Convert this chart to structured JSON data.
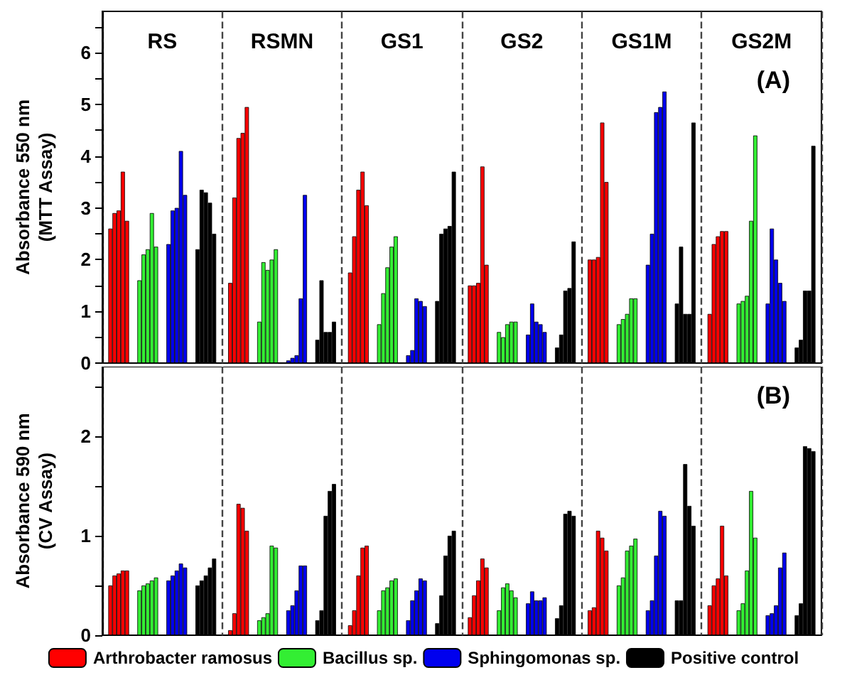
{
  "chart_data": [
    {
      "type": "bar",
      "ylabel": "Absorbance 550 nm\n(MTT Assay)",
      "categories": [
        "RS",
        "RSMN",
        "GS1",
        "GS2",
        "GS1M",
        "GS2M"
      ],
      "ylim": [
        0,
        6.8
      ],
      "yticks": [
        0,
        {
          "value": 0.5,
          "label": null
        },
        1,
        {
          "value": 1.5,
          "label": null
        },
        2,
        {
          "value": 2.5,
          "label": null
        },
        3,
        {
          "value": 3.5,
          "label": null
        },
        4,
        {
          "value": 4.5,
          "label": null
        },
        5,
        {
          "value": 5.5,
          "label": null
        },
        6,
        {
          "value": 6.5,
          "label": null
        }
      ],
      "grid": "x",
      "legend": false,
      "annotations": [
        "(A)"
      ],
      "series": [
        {
          "color": "#ff0000",
          "values": [
            2.6,
            1.55,
            1.75,
            1.5,
            2.0,
            0.95
          ]
        },
        {
          "color": "#ff0000",
          "values": [
            2.9,
            3.2,
            2.45,
            1.5,
            2.0,
            2.3
          ]
        },
        {
          "color": "#ff0000",
          "values": [
            2.95,
            4.35,
            3.35,
            1.55,
            2.05,
            2.45
          ]
        },
        {
          "color": "#ff0000",
          "values": [
            3.7,
            4.45,
            3.7,
            3.8,
            4.65,
            2.55
          ]
        },
        {
          "color": "#ff0000",
          "values": [
            2.75,
            4.95,
            3.05,
            1.9,
            3.5,
            2.55
          ]
        },
        {
          "color": "#33ee33",
          "values": [
            1.6,
            0.8,
            0.75,
            0.6,
            0.75,
            1.15
          ]
        },
        {
          "color": "#33ee33",
          "values": [
            2.1,
            1.95,
            1.35,
            0.5,
            0.85,
            1.2
          ]
        },
        {
          "color": "#33ee33",
          "values": [
            2.2,
            1.8,
            1.85,
            0.75,
            0.95,
            1.3
          ]
        },
        {
          "color": "#33ee33",
          "values": [
            2.9,
            2.0,
            2.25,
            0.8,
            1.25,
            2.75
          ]
        },
        {
          "color": "#33ee33",
          "values": [
            2.25,
            2.2,
            2.45,
            0.8,
            1.25,
            4.4
          ]
        },
        {
          "color": "#0000ee",
          "values": [
            2.3,
            0.05,
            0.15,
            0.55,
            1.9,
            1.15
          ]
        },
        {
          "color": "#0000ee",
          "values": [
            2.95,
            0.1,
            0.25,
            1.15,
            2.5,
            2.6
          ]
        },
        {
          "color": "#0000ee",
          "values": [
            3.0,
            0.15,
            1.25,
            0.8,
            4.85,
            2.0
          ]
        },
        {
          "color": "#0000ee",
          "values": [
            4.1,
            1.25,
            1.2,
            0.75,
            4.95,
            1.55
          ]
        },
        {
          "color": "#0000ee",
          "values": [
            3.25,
            3.25,
            1.1,
            0.6,
            5.25,
            1.2
          ]
        },
        {
          "color": "#000000",
          "values": [
            2.2,
            0.45,
            1.2,
            0.3,
            1.15,
            0.3
          ]
        },
        {
          "color": "#000000",
          "values": [
            3.35,
            1.6,
            2.5,
            0.55,
            2.25,
            0.45
          ]
        },
        {
          "color": "#000000",
          "values": [
            3.3,
            0.6,
            2.6,
            1.4,
            0.95,
            1.4
          ]
        },
        {
          "color": "#000000",
          "values": [
            3.1,
            0.6,
            2.65,
            1.45,
            0.95,
            1.4
          ]
        },
        {
          "color": "#000000",
          "values": [
            2.5,
            0.8,
            3.7,
            2.35,
            4.65,
            4.2
          ]
        }
      ]
    },
    {
      "type": "bar",
      "ylabel": "Absorbance 590 nm\n(CV Assay)",
      "categories": [
        null,
        null,
        null,
        null,
        null,
        null
      ],
      "ylim": [
        0,
        2.7
      ],
      "yticks": [
        0,
        {
          "value": 0.5,
          "label": null
        },
        1,
        {
          "value": 1.5,
          "label": null
        },
        2,
        {
          "value": 2.5,
          "label": null
        }
      ],
      "grid": "x",
      "legend": "bottom",
      "annotations": [
        "(B)"
      ],
      "series": [
        {
          "name": "Arthrobacter ramosus",
          "color": "#ff0000",
          "values": [
            0.5,
            0.05,
            0.1,
            0.18,
            0.25,
            0.3
          ]
        },
        {
          "color": "#ff0000",
          "values": [
            0.6,
            0.22,
            0.25,
            0.4,
            0.28,
            0.5
          ]
        },
        {
          "color": "#ff0000",
          "values": [
            0.62,
            1.32,
            0.6,
            0.55,
            1.05,
            0.57
          ]
        },
        {
          "color": "#ff0000",
          "values": [
            0.65,
            1.28,
            0.88,
            0.77,
            0.98,
            1.1
          ]
        },
        {
          "color": "#ff0000",
          "values": [
            0.65,
            1.05,
            0.9,
            0.68,
            0.85,
            0.6
          ]
        },
        {
          "name": "Bacillus sp.",
          "color": "#33ee33",
          "values": [
            0.45,
            0.15,
            0.25,
            0.25,
            0.5,
            0.25
          ]
        },
        {
          "color": "#33ee33",
          "values": [
            0.5,
            0.18,
            0.45,
            0.48,
            0.58,
            0.32
          ]
        },
        {
          "color": "#33ee33",
          "values": [
            0.52,
            0.22,
            0.48,
            0.52,
            0.85,
            0.65
          ]
        },
        {
          "color": "#33ee33",
          "values": [
            0.55,
            0.9,
            0.55,
            0.45,
            0.9,
            1.45
          ]
        },
        {
          "color": "#33ee33",
          "values": [
            0.58,
            0.88,
            0.57,
            0.38,
            0.97,
            0.98
          ]
        },
        {
          "name": "Sphingomonas sp.",
          "color": "#0000ee",
          "values": [
            0.55,
            0.25,
            0.15,
            0.32,
            0.25,
            0.2
          ]
        },
        {
          "color": "#0000ee",
          "values": [
            0.6,
            0.3,
            0.35,
            0.44,
            0.35,
            0.22
          ]
        },
        {
          "color": "#0000ee",
          "values": [
            0.65,
            0.45,
            0.45,
            0.35,
            0.8,
            0.3
          ]
        },
        {
          "color": "#0000ee",
          "values": [
            0.72,
            0.7,
            0.57,
            0.35,
            1.25,
            0.68
          ]
        },
        {
          "color": "#0000ee",
          "values": [
            0.68,
            0.7,
            0.55,
            0.38,
            1.2,
            0.83
          ]
        },
        {
          "name": "Positive control",
          "color": "#000000",
          "values": [
            0.5,
            0.15,
            0.12,
            0.17,
            0.35,
            0.2
          ]
        },
        {
          "color": "#000000",
          "values": [
            0.55,
            0.25,
            0.4,
            0.3,
            0.35,
            0.32
          ]
        },
        {
          "color": "#000000",
          "values": [
            0.6,
            1.2,
            0.8,
            1.22,
            1.72,
            1.9
          ]
        },
        {
          "color": "#000000",
          "values": [
            0.68,
            1.45,
            1.0,
            1.25,
            1.3,
            1.88
          ]
        },
        {
          "color": "#000000",
          "values": [
            0.77,
            1.52,
            1.05,
            1.2,
            1.1,
            1.85
          ]
        }
      ]
    }
  ]
}
